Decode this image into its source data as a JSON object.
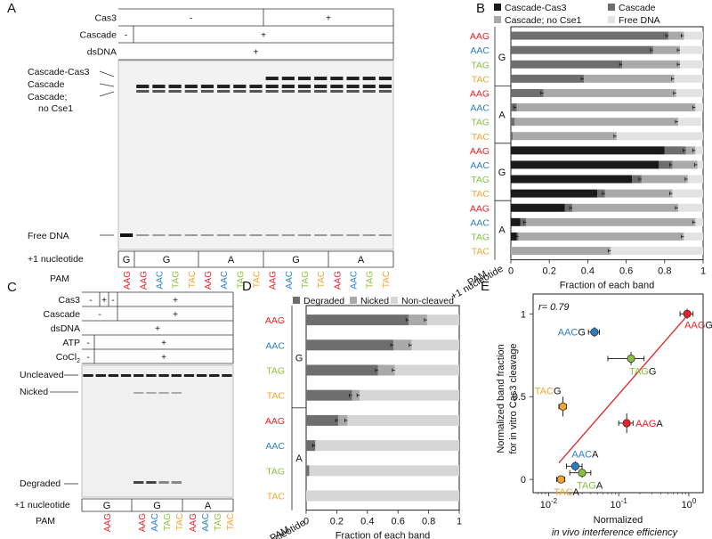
{
  "panels": {
    "A": "A",
    "B": "B",
    "C": "C",
    "D": "D",
    "E": "E"
  },
  "colors": {
    "AAG": "#e8202a",
    "AAC": "#2a7fc1",
    "TAG": "#8cbf3f",
    "TAC": "#f2a52c"
  },
  "panel_a": {
    "rows": [
      {
        "label": "Cas3",
        "cells": [
          "-",
          "+"
        ]
      },
      {
        "label": "Cascade",
        "cells": [
          "-",
          "+"
        ]
      },
      {
        "label": "dsDNA",
        "cells": [
          "+"
        ]
      }
    ],
    "bands": [
      "Cascade-Cas3",
      "Cascade",
      "Cascade;",
      "no Cse1",
      "Free DNA"
    ],
    "nuc_label": "+1 nucleotide",
    "nuc_groups": [
      "G",
      "G",
      "A",
      "G",
      "A"
    ],
    "pam_label": "PAM",
    "pam_lanes": [
      "AAG",
      "AAG",
      "AAC",
      "TAG",
      "TAC",
      "AAG",
      "AAC",
      "TAG",
      "TAC",
      "AAG",
      "AAC",
      "TAG",
      "TAC",
      "AAG",
      "AAC",
      "TAG",
      "TAC"
    ]
  },
  "panel_c": {
    "rows": [
      {
        "label": "Cas3",
        "cells": [
          "-",
          "+",
          "-",
          "+"
        ]
      },
      {
        "label": "Cascade",
        "cells": [
          "-",
          "+"
        ]
      },
      {
        "label": "dsDNA",
        "cells": [
          "+"
        ]
      },
      {
        "label": "ATP",
        "cells": [
          "-",
          "+"
        ]
      },
      {
        "label": "CoCl",
        "sub": "2",
        "cells": [
          "-",
          "+"
        ]
      }
    ],
    "bands": [
      "Uncleaved",
      "Nicked",
      "Degraded"
    ],
    "nuc_label": "+1 nucleotide",
    "nuc_groups": [
      "G",
      "G",
      "A"
    ],
    "pam_label": "PAM",
    "pam_lanes": [
      "AAG",
      "AAG",
      "AAC",
      "TAG",
      "TAC",
      "AAG",
      "AAC",
      "TAG",
      "TAC"
    ]
  },
  "chart_data": [
    {
      "panel": "B",
      "type": "bar",
      "orientation": "horizontal-stacked",
      "xlabel": "Fraction of each band",
      "xlim": [
        0,
        1
      ],
      "xticks": [
        "0",
        "0.2",
        "0.4",
        "0.6",
        "0.8",
        "1"
      ],
      "ylabel_lines": [
        "PAM",
        "+1 nucleotide"
      ],
      "legend": [
        {
          "name": "Cascade-Cas3",
          "color": "#1a1a1a"
        },
        {
          "name": "Cascade",
          "color": "#6e6e6e"
        },
        {
          "name": "Cascade; no Cse1",
          "color": "#a9a9a9"
        },
        {
          "name": "Free DNA",
          "color": "#e3e3e3"
        }
      ],
      "groups": [
        "G",
        "A",
        "G",
        "A"
      ],
      "categories": [
        "AAG",
        "AAC",
        "TAG",
        "TAC",
        "AAG",
        "AAC",
        "TAG",
        "TAC",
        "AAG",
        "AAC",
        "TAG",
        "TAC",
        "AAG",
        "AAC",
        "TAG",
        "TAC"
      ],
      "series": [
        {
          "name": "Cascade-Cas3",
          "values": [
            0,
            0,
            0,
            0,
            0,
            0,
            0,
            0,
            0.8,
            0.77,
            0.63,
            0.45,
            0.28,
            0.05,
            0.03,
            0
          ]
        },
        {
          "name": "Cascade",
          "values": [
            0.82,
            0.74,
            0.58,
            0.38,
            0.17,
            0.03,
            0.02,
            0.01,
            0.11,
            0.07,
            0.05,
            0.04,
            0.04,
            0.03,
            0.01,
            0
          ]
        },
        {
          "name": "Cascade; no Cse1",
          "values": [
            0.08,
            0.14,
            0.3,
            0.47,
            0.69,
            0.93,
            0.85,
            0.54,
            0.05,
            0.13,
            0.24,
            0.35,
            0.55,
            0.88,
            0.86,
            0.52
          ]
        },
        {
          "name": "Free DNA",
          "values": [
            0.1,
            0.12,
            0.12,
            0.15,
            0.14,
            0.04,
            0.12,
            0.45,
            0.04,
            0.03,
            0.08,
            0.16,
            0.13,
            0.04,
            0.1,
            0.48
          ]
        }
      ]
    },
    {
      "panel": "D",
      "type": "bar",
      "orientation": "horizontal-stacked",
      "xlabel": "Fraction of each band",
      "xlim": [
        0,
        1
      ],
      "xticks": [
        "0",
        "0.2",
        "0.4",
        "0.6",
        "0.8",
        "1"
      ],
      "ylabel_lines": [
        "PAM",
        "+1 nucleotide"
      ],
      "legend": [
        {
          "name": "Degraded",
          "color": "#6e6e6e"
        },
        {
          "name": "Nicked",
          "color": "#a9a9a9"
        },
        {
          "name": "Non-cleaved",
          "color": "#d6d6d6"
        }
      ],
      "groups": [
        "G",
        "A"
      ],
      "categories": [
        "AAG",
        "AAC",
        "TAG",
        "TAC",
        "AAG",
        "AAC",
        "TAG",
        "TAC"
      ],
      "series": [
        {
          "name": "Degraded",
          "values": [
            0.67,
            0.57,
            0.47,
            0.3,
            0.21,
            0.06,
            0.02,
            0
          ]
        },
        {
          "name": "Nicked",
          "values": [
            0.12,
            0.12,
            0.11,
            0.05,
            0.06,
            0,
            0,
            0
          ]
        },
        {
          "name": "Non-cleaved",
          "values": [
            0.21,
            0.31,
            0.42,
            0.65,
            0.73,
            0.94,
            0.98,
            1
          ]
        }
      ]
    },
    {
      "panel": "E",
      "type": "scatter",
      "annotation": "r= 0.79",
      "xlabel_lines": [
        "Normalized",
        "in vivo interference efficiency"
      ],
      "ylabel_lines": [
        "Normalized band fraction",
        "for in vitro Cas3 cleavage"
      ],
      "xscale": "log",
      "xlim": [
        0.006,
        1.6
      ],
      "ylim": [
        -0.08,
        1.12
      ],
      "xticks": [
        0.01,
        0.1,
        1
      ],
      "yticks": [
        "0",
        "0.5",
        "1"
      ],
      "points": [
        {
          "label": "AAGG",
          "pam": "AAG",
          "nuc": "G",
          "x": 0.95,
          "y": 1.0,
          "xerr": 0.2,
          "yerr": 0.03,
          "color": "#e8202a"
        },
        {
          "label": "AACG",
          "pam": "AAC",
          "nuc": "G",
          "x": 0.045,
          "y": 0.89,
          "xerr": 0.008,
          "yerr": 0.03,
          "color": "#2a7fc1"
        },
        {
          "label": "TAGG",
          "pam": "TAG",
          "nuc": "G",
          "x": 0.15,
          "y": 0.73,
          "xerr": 0.08,
          "yerr": 0.04,
          "color": "#8cbf3f"
        },
        {
          "label": "TACG",
          "pam": "TAC",
          "nuc": "G",
          "x": 0.016,
          "y": 0.44,
          "xerr": 0.002,
          "yerr": 0.06,
          "color": "#f2a52c"
        },
        {
          "label": "AAGA",
          "pam": "AAG",
          "nuc": "A",
          "x": 0.13,
          "y": 0.34,
          "xerr": 0.03,
          "yerr": 0.06,
          "color": "#e8202a"
        },
        {
          "label": "AACA",
          "pam": "AAC",
          "nuc": "A",
          "x": 0.024,
          "y": 0.08,
          "xerr": 0.006,
          "yerr": 0.03,
          "color": "#2a7fc1"
        },
        {
          "label": "TAGA",
          "pam": "TAG",
          "nuc": "A",
          "x": 0.03,
          "y": 0.04,
          "xerr": 0.01,
          "yerr": 0.03,
          "color": "#8cbf3f"
        },
        {
          "label": "TACA",
          "pam": "TAC",
          "nuc": "A",
          "x": 0.015,
          "y": 0.0,
          "xerr": 0.002,
          "yerr": 0.02,
          "color": "#f2a52c"
        }
      ],
      "fit_line": {
        "from": [
          0.014,
          0.1
        ],
        "to": [
          1.0,
          1.0
        ],
        "color": "#e03030"
      }
    }
  ]
}
